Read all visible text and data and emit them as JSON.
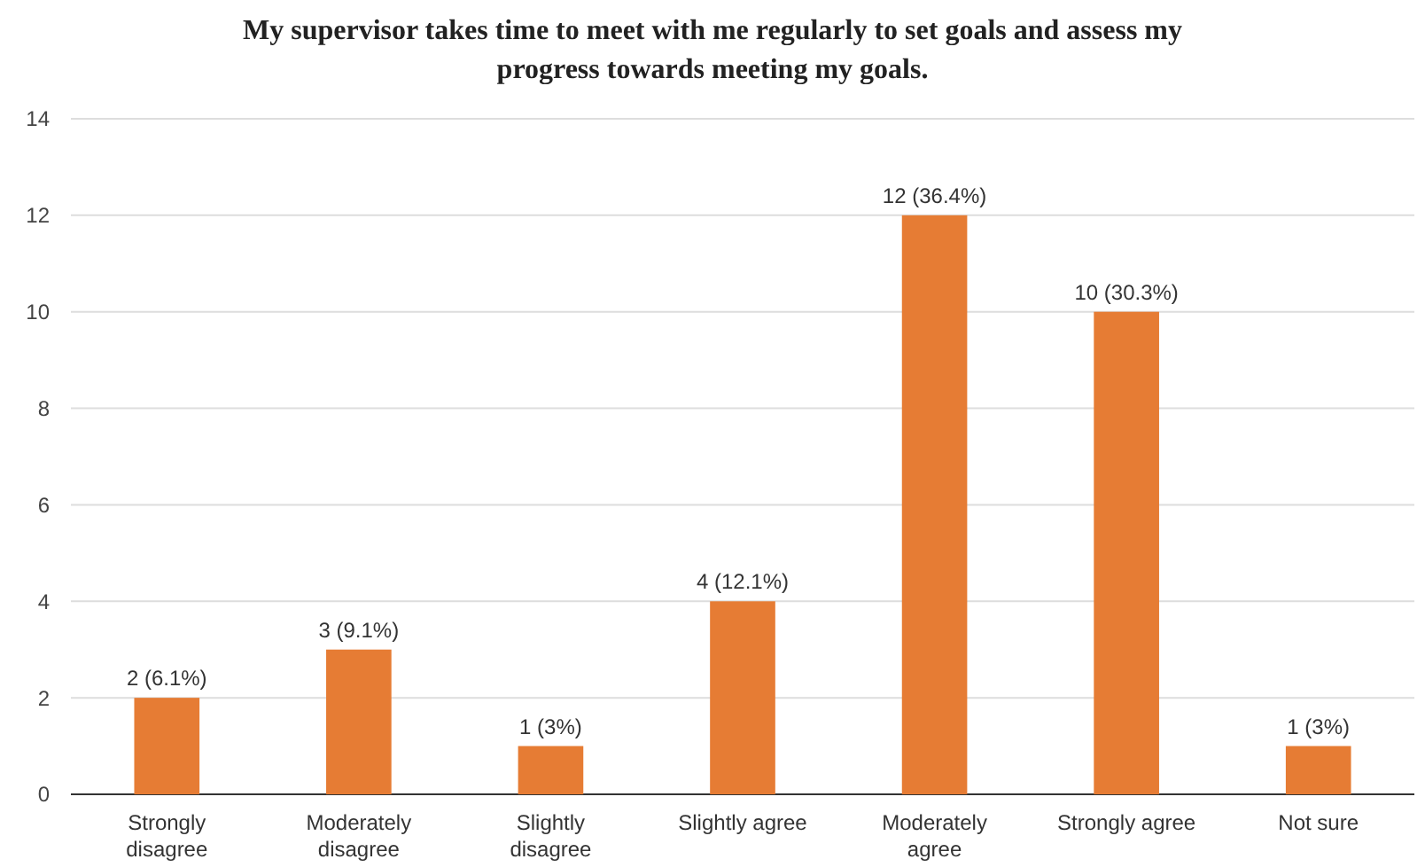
{
  "chart_data": {
    "type": "bar",
    "title": "My supervisor takes time to meet with me regularly to set goals and assess my progress towards meeting my goals.",
    "categories": [
      "Strongly disagree",
      "Moderately disagree",
      "Slightly disagree",
      "Slightly agree",
      "Moderately agree",
      "Strongly agree",
      "Not sure"
    ],
    "values": [
      2,
      3,
      1,
      4,
      12,
      10,
      1
    ],
    "value_labels": [
      "2 (6.1%)",
      "3 (9.1%)",
      "1 (3%)",
      "4 (12.1%)",
      "12 (36.4%)",
      "10 (30.3%)",
      "1 (3%)"
    ],
    "color": "#e67c34",
    "ylim": [
      0,
      14
    ],
    "yticks": [
      0,
      2,
      4,
      6,
      8,
      10,
      12,
      14
    ],
    "grid": "y"
  }
}
